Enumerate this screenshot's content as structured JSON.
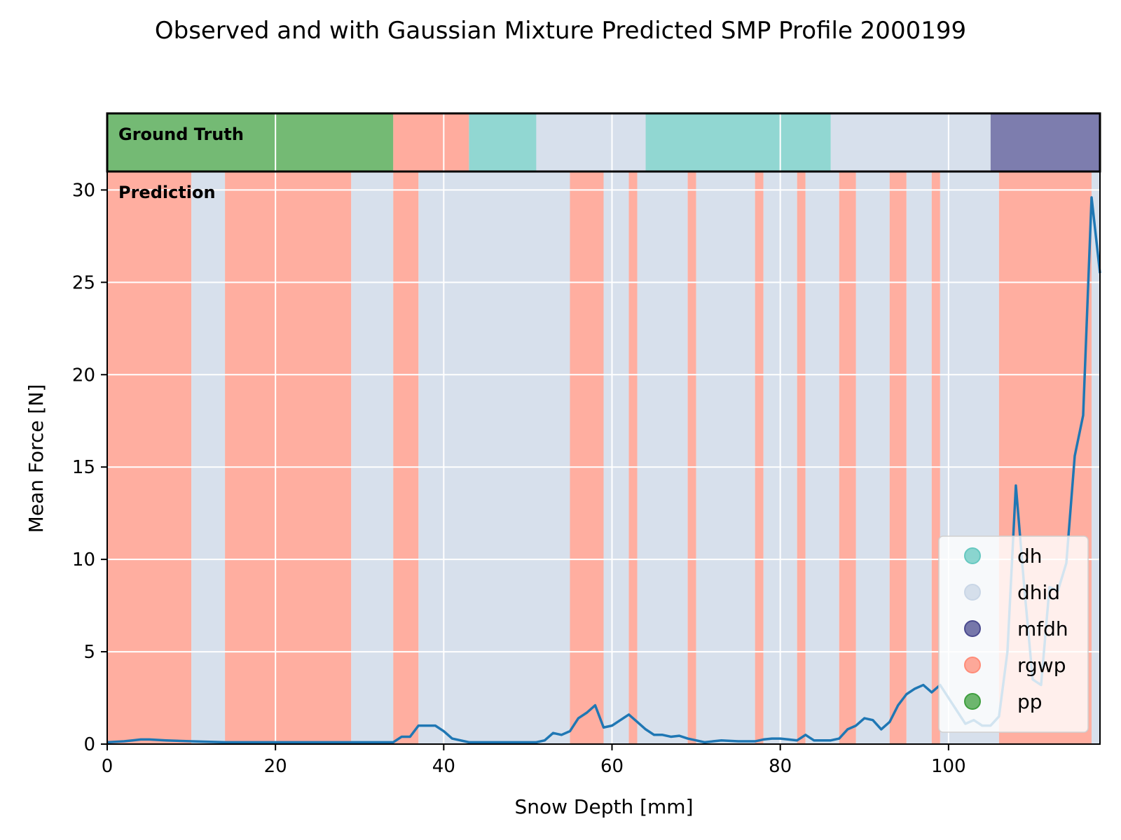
{
  "chart_data": {
    "type": "line",
    "title": "Observed and with Gaussian Mixture Predicted SMP Profile 2000199",
    "xlabel": "Snow Depth [mm]",
    "ylabel": "Mean Force [N]",
    "xlim": [
      0,
      118
    ],
    "ylim": [
      0,
      31
    ],
    "x_ticks": [
      0,
      20,
      40,
      60,
      80,
      100
    ],
    "y_ticks": [
      0,
      5,
      10,
      15,
      20,
      25,
      30
    ],
    "grid": true,
    "legend_position": "lower-right",
    "ground_truth_label": "Ground Truth",
    "prediction_label": "Prediction",
    "classes": [
      {
        "name": "dh",
        "color": "#66c8c0"
      },
      {
        "name": "dhid",
        "color": "#c9d6e6"
      },
      {
        "name": "mfdh",
        "color": "#4b4b8f"
      },
      {
        "name": "rgwp",
        "color": "#ff8c78"
      },
      {
        "name": "pp",
        "color": "#3f9f3f"
      }
    ],
    "ground_truth": [
      {
        "start": 0,
        "end": 34,
        "class": "pp"
      },
      {
        "start": 34,
        "end": 43,
        "class": "rgwp"
      },
      {
        "start": 43,
        "end": 51,
        "class": "dh"
      },
      {
        "start": 51,
        "end": 64,
        "class": "dhid"
      },
      {
        "start": 64,
        "end": 86,
        "class": "dh"
      },
      {
        "start": 86,
        "end": 105,
        "class": "dhid"
      },
      {
        "start": 105,
        "end": 118,
        "class": "mfdh"
      }
    ],
    "prediction": [
      {
        "start": 0,
        "end": 10,
        "class": "rgwp"
      },
      {
        "start": 10,
        "end": 14,
        "class": "dhid"
      },
      {
        "start": 14,
        "end": 29,
        "class": "rgwp"
      },
      {
        "start": 29,
        "end": 34,
        "class": "dhid"
      },
      {
        "start": 34,
        "end": 37,
        "class": "rgwp"
      },
      {
        "start": 37,
        "end": 55,
        "class": "dhid"
      },
      {
        "start": 55,
        "end": 59,
        "class": "rgwp"
      },
      {
        "start": 59,
        "end": 62,
        "class": "dhid"
      },
      {
        "start": 62,
        "end": 63,
        "class": "rgwp"
      },
      {
        "start": 63,
        "end": 69,
        "class": "dhid"
      },
      {
        "start": 69,
        "end": 70,
        "class": "rgwp"
      },
      {
        "start": 70,
        "end": 77,
        "class": "dhid"
      },
      {
        "start": 77,
        "end": 78,
        "class": "rgwp"
      },
      {
        "start": 78,
        "end": 82,
        "class": "dhid"
      },
      {
        "start": 82,
        "end": 83,
        "class": "rgwp"
      },
      {
        "start": 83,
        "end": 87,
        "class": "dhid"
      },
      {
        "start": 87,
        "end": 89,
        "class": "rgwp"
      },
      {
        "start": 89,
        "end": 93,
        "class": "dhid"
      },
      {
        "start": 93,
        "end": 95,
        "class": "rgwp"
      },
      {
        "start": 95,
        "end": 98,
        "class": "dhid"
      },
      {
        "start": 98,
        "end": 99,
        "class": "rgwp"
      },
      {
        "start": 99,
        "end": 106,
        "class": "dhid"
      },
      {
        "start": 106,
        "end": 117,
        "class": "rgwp"
      },
      {
        "start": 117,
        "end": 118,
        "class": "dhid"
      }
    ],
    "series": [
      {
        "color": "#1f77b4",
        "x": [
          0,
          2,
          3,
          4,
          5,
          7,
          10,
          14,
          20,
          30,
          34,
          35,
          36,
          37,
          38,
          39,
          40,
          41,
          43,
          45,
          50,
          51,
          52,
          53,
          54,
          55,
          56,
          57,
          58,
          59,
          60,
          61,
          62,
          63,
          64,
          65,
          66,
          67,
          68,
          69,
          70,
          71,
          72,
          73,
          75,
          77,
          78,
          79,
          80,
          81,
          82,
          83,
          84,
          85,
          86,
          87,
          88,
          89,
          90,
          91,
          92,
          93,
          94,
          95,
          96,
          97,
          98,
          99,
          100,
          101,
          102,
          103,
          104,
          105,
          106,
          107,
          108,
          109,
          110,
          111,
          112,
          113,
          114,
          115,
          116,
          117,
          118
        ],
        "y": [
          0.1,
          0.15,
          0.2,
          0.25,
          0.25,
          0.2,
          0.15,
          0.1,
          0.1,
          0.1,
          0.1,
          0.4,
          0.4,
          1.0,
          1.0,
          1.0,
          0.7,
          0.3,
          0.1,
          0.1,
          0.1,
          0.1,
          0.2,
          0.6,
          0.5,
          0.7,
          1.4,
          1.7,
          2.1,
          0.9,
          1.0,
          1.3,
          1.6,
          1.2,
          0.8,
          0.5,
          0.5,
          0.4,
          0.45,
          0.3,
          0.2,
          0.1,
          0.15,
          0.2,
          0.15,
          0.15,
          0.25,
          0.3,
          0.3,
          0.25,
          0.2,
          0.5,
          0.2,
          0.2,
          0.2,
          0.3,
          0.8,
          1.0,
          1.4,
          1.3,
          0.8,
          1.2,
          2.1,
          2.7,
          3.0,
          3.2,
          2.8,
          3.2,
          2.5,
          1.8,
          1.1,
          1.3,
          1.0,
          1.0,
          1.5,
          5.0,
          14.0,
          8.5,
          3.5,
          3.2,
          8.5,
          8.3,
          9.8,
          15.6,
          17.8,
          29.6,
          25.5
        ]
      }
    ]
  }
}
